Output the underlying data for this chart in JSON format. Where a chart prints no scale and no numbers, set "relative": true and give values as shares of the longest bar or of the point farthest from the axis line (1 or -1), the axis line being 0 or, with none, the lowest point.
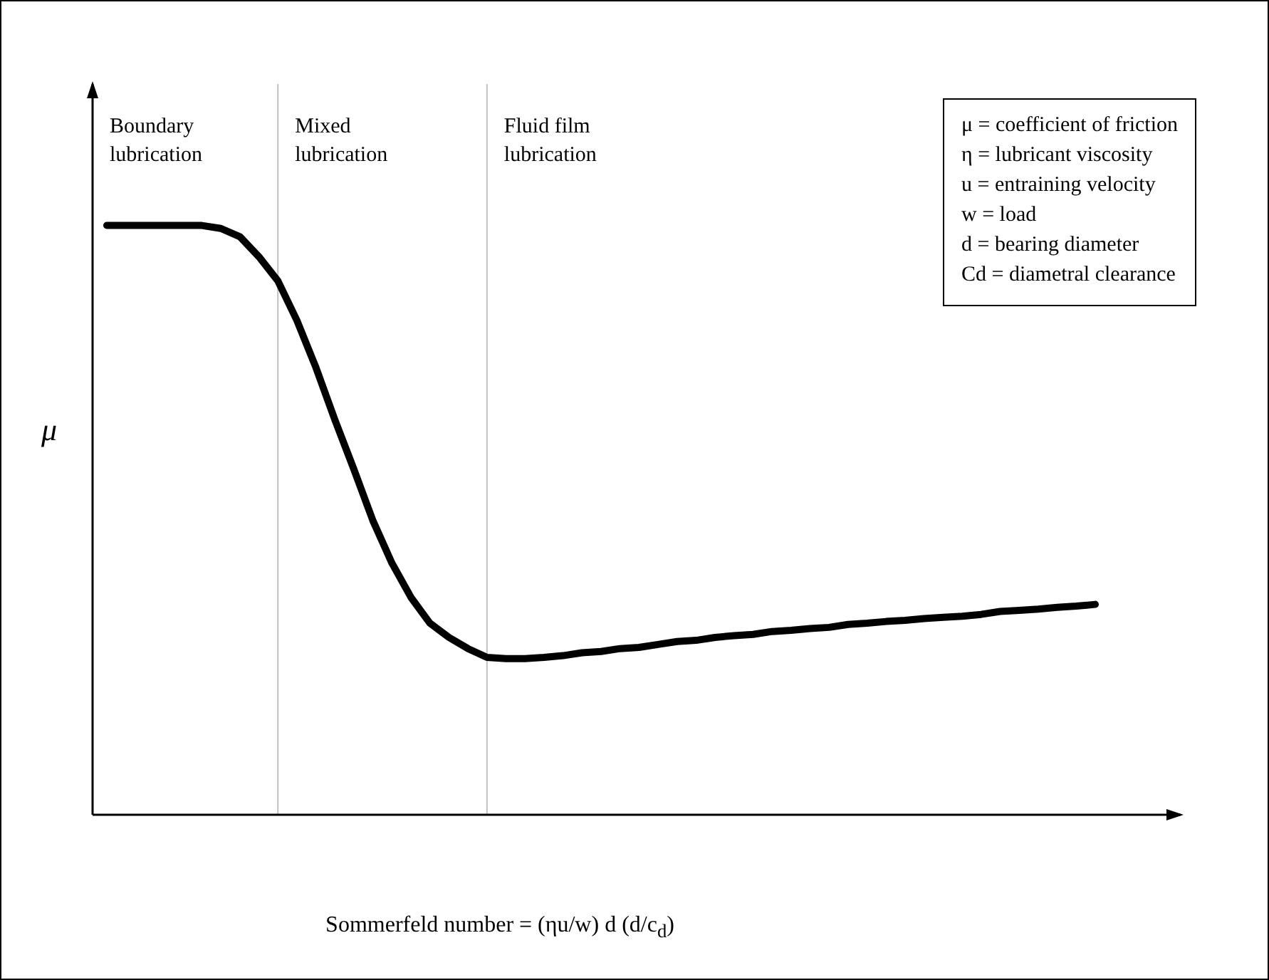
{
  "chart_data": {
    "type": "line",
    "relative": true,
    "xlabel": "Sommerfeld number = (ηu/w) d (d/c$_{d}$)",
    "ylabel": "μ",
    "categories": [
      null,
      null,
      null,
      null,
      null,
      null,
      null,
      null,
      null,
      null,
      null,
      null,
      null,
      null,
      null,
      null,
      null,
      null,
      null,
      null,
      null,
      null,
      null,
      null,
      null,
      null,
      null,
      null,
      null,
      null,
      null,
      null,
      null,
      null,
      null,
      null,
      null,
      null,
      null,
      null,
      null,
      null,
      null,
      null,
      null,
      null,
      null,
      null,
      null,
      null,
      null,
      null,
      null
    ],
    "series": [
      {
        "color": "#000000",
        "values": [
          1,
          1,
          1,
          1,
          1,
          1,
          0.995,
          0.981,
          0.947,
          0.906,
          0.839,
          0.759,
          0.67,
          0.586,
          0.499,
          0.427,
          0.369,
          0.325,
          0.301,
          0.282,
          0.267,
          0.265,
          0.265,
          0.267,
          0.27,
          0.275,
          0.277,
          0.282,
          0.284,
          0.289,
          0.294,
          0.296,
          0.301,
          0.304,
          0.306,
          0.311,
          0.313,
          0.316,
          0.318,
          0.323,
          0.325,
          0.328,
          0.33,
          0.333,
          0.335,
          0.337,
          0.34,
          0.345,
          0.347,
          0.349,
          0.352,
          0.354,
          0.357
        ]
      }
    ],
    "annotations": [
      "Boundary lubrication",
      "Mixed lubrication",
      "Fluid film lubrication",
      "μ = coefficient of friction",
      "η = lubricant viscosity",
      "u = entraining velocity",
      "w = load",
      "d = bearing diameter",
      "Cd = diametral clearance"
    ],
    "grid": false,
    "legend": false,
    "marker": "none",
    "line_style": "solid"
  }
}
